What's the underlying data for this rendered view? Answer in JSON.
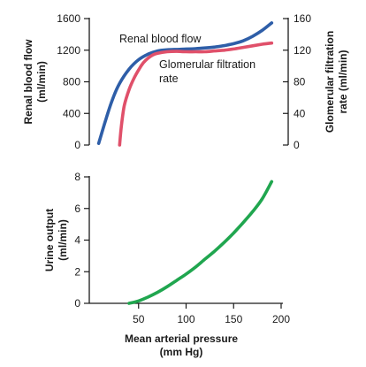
{
  "chart_data": [
    {
      "type": "line",
      "xlabel": "",
      "xlim": [
        0,
        200
      ],
      "ylabel": "Renal blood flow (ml/min)",
      "ylabel_lines": [
        "Renal blood flow",
        "(ml/min)"
      ],
      "ylim": [
        0,
        1600
      ],
      "yticks": [
        0,
        400,
        800,
        1200,
        1600
      ],
      "y2label": "Glomerular filtration rate (ml/min)",
      "y2label_lines": [
        "Glomerular filtration",
        "rate (ml/min)"
      ],
      "y2lim": [
        0,
        160
      ],
      "y2ticks": [
        0,
        40,
        80,
        120,
        160
      ],
      "grid": false,
      "series": [
        {
          "name": "Renal blood flow",
          "axis": "left",
          "color": "#2e5ea8",
          "x": [
            8,
            15,
            22,
            30,
            40,
            50,
            60,
            70,
            80,
            90,
            100,
            110,
            120,
            130,
            140,
            150,
            160,
            170,
            180,
            190
          ],
          "y": [
            20,
            300,
            560,
            780,
            960,
            1080,
            1150,
            1190,
            1205,
            1210,
            1215,
            1220,
            1228,
            1240,
            1258,
            1282,
            1318,
            1375,
            1450,
            1545
          ],
          "label_lines": [
            "Renal blood flow"
          ]
        },
        {
          "name": "Glomerular filtration rate",
          "axis": "right",
          "color": "#e0506a",
          "x": [
            30,
            32,
            35,
            40,
            45,
            50,
            55,
            60,
            65,
            70,
            80,
            90,
            100,
            110,
            120,
            130,
            140,
            150,
            160,
            170,
            180,
            190
          ],
          "y": [
            0,
            25,
            50,
            70,
            84,
            95,
            104,
            110,
            114,
            116,
            118,
            118.5,
            118,
            118,
            118,
            119,
            120,
            121.5,
            123.5,
            125.5,
            127.5,
            129
          ],
          "label_lines": [
            "Glomerular filtration",
            "rate"
          ]
        }
      ]
    },
    {
      "type": "line",
      "xlabel": "Mean arterial pressure (mm Hg)",
      "xlabel_lines": [
        "Mean arterial pressure",
        "(mm Hg)"
      ],
      "xlim": [
        0,
        200
      ],
      "xticks": [
        50,
        100,
        150,
        200
      ],
      "ylabel": "Urine output (ml/min)",
      "ylabel_lines": [
        "Urine output",
        "(ml/min)"
      ],
      "ylim": [
        0,
        8
      ],
      "yticks": [
        0,
        2,
        4,
        6,
        8
      ],
      "grid": false,
      "series": [
        {
          "name": "Urine output",
          "color": "#20a64f",
          "x": [
            40,
            50,
            60,
            70,
            80,
            90,
            100,
            110,
            120,
            130,
            140,
            150,
            160,
            170,
            180,
            190
          ],
          "y": [
            0,
            0.15,
            0.4,
            0.7,
            1.05,
            1.45,
            1.85,
            2.3,
            2.8,
            3.3,
            3.85,
            4.45,
            5.1,
            5.8,
            6.6,
            7.7
          ]
        }
      ]
    }
  ]
}
